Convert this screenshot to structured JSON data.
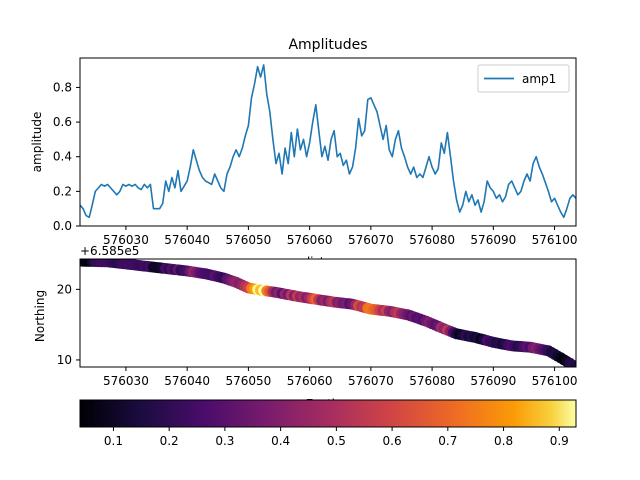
{
  "chart_data": [
    {
      "type": "line",
      "title": "Amplitudes",
      "xlabel": "distance",
      "ylabel": "amplitude",
      "xlim": [
        576022.5,
        576103.5
      ],
      "ylim": [
        0.0,
        0.97
      ],
      "xticks": [
        576030,
        576040,
        576050,
        576060,
        576070,
        576080,
        576090,
        576100
      ],
      "xtick_labels": [
        "576030",
        "576040",
        "576050",
        "576060",
        "576070",
        "576080",
        "576090",
        "576100"
      ],
      "yticks": [
        0.0,
        0.2,
        0.4,
        0.6,
        0.8
      ],
      "ytick_labels": [
        "0.0",
        "0.2",
        "0.4",
        "0.6",
        "0.8"
      ],
      "legend": "top-right",
      "series": [
        {
          "name": "amp1",
          "color": "#1f77b4",
          "points": [
            [
              576022.5,
              0.12
            ],
            [
              576023.0,
              0.1
            ],
            [
              576023.5,
              0.06
            ],
            [
              576024.0,
              0.05
            ],
            [
              576024.5,
              0.12
            ],
            [
              576025.0,
              0.2
            ],
            [
              576025.5,
              0.22
            ],
            [
              576026.0,
              0.24
            ],
            [
              576026.5,
              0.23
            ],
            [
              576027.0,
              0.24
            ],
            [
              576027.5,
              0.22
            ],
            [
              576028.0,
              0.2
            ],
            [
              576028.5,
              0.18
            ],
            [
              576029.0,
              0.2
            ],
            [
              576029.5,
              0.24
            ],
            [
              576030.0,
              0.23
            ],
            [
              576030.5,
              0.24
            ],
            [
              576031.0,
              0.23
            ],
            [
              576031.5,
              0.24
            ],
            [
              576032.0,
              0.22
            ],
            [
              576032.5,
              0.21
            ],
            [
              576033.0,
              0.24
            ],
            [
              576033.5,
              0.22
            ],
            [
              576034.0,
              0.24
            ],
            [
              576034.5,
              0.1
            ],
            [
              576035.0,
              0.1
            ],
            [
              576035.5,
              0.1
            ],
            [
              576036.0,
              0.13
            ],
            [
              576036.5,
              0.26
            ],
            [
              576037.0,
              0.2
            ],
            [
              576037.5,
              0.28
            ],
            [
              576038.0,
              0.22
            ],
            [
              576038.5,
              0.32
            ],
            [
              576039.0,
              0.2
            ],
            [
              576039.5,
              0.23
            ],
            [
              576040.0,
              0.26
            ],
            [
              576040.5,
              0.34
            ],
            [
              576041.0,
              0.44
            ],
            [
              576041.5,
              0.38
            ],
            [
              576042.0,
              0.32
            ],
            [
              576042.5,
              0.28
            ],
            [
              576043.0,
              0.26
            ],
            [
              576043.5,
              0.25
            ],
            [
              576044.0,
              0.24
            ],
            [
              576044.5,
              0.3
            ],
            [
              576045.0,
              0.26
            ],
            [
              576045.5,
              0.22
            ],
            [
              576046.0,
              0.2
            ],
            [
              576046.5,
              0.3
            ],
            [
              576047.0,
              0.34
            ],
            [
              576047.5,
              0.4
            ],
            [
              576048.0,
              0.44
            ],
            [
              576048.5,
              0.4
            ],
            [
              576049.0,
              0.45
            ],
            [
              576049.5,
              0.52
            ],
            [
              576050.0,
              0.58
            ],
            [
              576050.5,
              0.74
            ],
            [
              576051.0,
              0.82
            ],
            [
              576051.5,
              0.92
            ],
            [
              576052.0,
              0.86
            ],
            [
              576052.5,
              0.93
            ],
            [
              576053.0,
              0.76
            ],
            [
              576053.5,
              0.66
            ],
            [
              576054.0,
              0.5
            ],
            [
              576054.5,
              0.36
            ],
            [
              576055.0,
              0.42
            ],
            [
              576055.5,
              0.3
            ],
            [
              576056.0,
              0.45
            ],
            [
              576056.5,
              0.36
            ],
            [
              576057.0,
              0.54
            ],
            [
              576057.5,
              0.4
            ],
            [
              576058.0,
              0.56
            ],
            [
              576058.5,
              0.44
            ],
            [
              576059.0,
              0.5
            ],
            [
              576059.5,
              0.4
            ],
            [
              576060.0,
              0.48
            ],
            [
              576060.5,
              0.6
            ],
            [
              576061.0,
              0.7
            ],
            [
              576061.5,
              0.55
            ],
            [
              576062.0,
              0.4
            ],
            [
              576062.5,
              0.46
            ],
            [
              576063.0,
              0.38
            ],
            [
              576063.5,
              0.5
            ],
            [
              576064.0,
              0.55
            ],
            [
              576064.5,
              0.4
            ],
            [
              576065.0,
              0.42
            ],
            [
              576065.5,
              0.35
            ],
            [
              576066.0,
              0.38
            ],
            [
              576066.5,
              0.3
            ],
            [
              576067.0,
              0.34
            ],
            [
              576067.5,
              0.45
            ],
            [
              576068.0,
              0.62
            ],
            [
              576068.5,
              0.52
            ],
            [
              576069.0,
              0.55
            ],
            [
              576069.5,
              0.73
            ],
            [
              576070.0,
              0.74
            ],
            [
              576070.5,
              0.7
            ],
            [
              576071.0,
              0.66
            ],
            [
              576071.5,
              0.58
            ],
            [
              576072.0,
              0.5
            ],
            [
              576072.5,
              0.58
            ],
            [
              576073.0,
              0.44
            ],
            [
              576073.5,
              0.4
            ],
            [
              576074.0,
              0.5
            ],
            [
              576074.5,
              0.55
            ],
            [
              576075.0,
              0.45
            ],
            [
              576075.5,
              0.4
            ],
            [
              576076.0,
              0.34
            ],
            [
              576076.5,
              0.3
            ],
            [
              576077.0,
              0.34
            ],
            [
              576077.5,
              0.28
            ],
            [
              576078.0,
              0.3
            ],
            [
              576078.5,
              0.28
            ],
            [
              576079.0,
              0.34
            ],
            [
              576079.5,
              0.4
            ],
            [
              576080.0,
              0.34
            ],
            [
              576080.5,
              0.3
            ],
            [
              576081.0,
              0.33
            ],
            [
              576081.5,
              0.48
            ],
            [
              576082.0,
              0.42
            ],
            [
              576082.5,
              0.54
            ],
            [
              576083.0,
              0.4
            ],
            [
              576083.5,
              0.26
            ],
            [
              576084.0,
              0.15
            ],
            [
              576084.5,
              0.08
            ],
            [
              576085.0,
              0.12
            ],
            [
              576085.5,
              0.2
            ],
            [
              576086.0,
              0.14
            ],
            [
              576086.5,
              0.18
            ],
            [
              576087.0,
              0.12
            ],
            [
              576087.5,
              0.15
            ],
            [
              576088.0,
              0.08
            ],
            [
              576088.5,
              0.14
            ],
            [
              576089.0,
              0.26
            ],
            [
              576089.5,
              0.22
            ],
            [
              576090.0,
              0.2
            ],
            [
              576090.5,
              0.16
            ],
            [
              576091.0,
              0.18
            ],
            [
              576091.5,
              0.14
            ],
            [
              576092.0,
              0.17
            ],
            [
              576092.5,
              0.24
            ],
            [
              576093.0,
              0.26
            ],
            [
              576093.5,
              0.22
            ],
            [
              576094.0,
              0.18
            ],
            [
              576094.5,
              0.2
            ],
            [
              576095.0,
              0.26
            ],
            [
              576095.5,
              0.3
            ],
            [
              576096.0,
              0.26
            ],
            [
              576096.5,
              0.36
            ],
            [
              576097.0,
              0.4
            ],
            [
              576097.5,
              0.34
            ],
            [
              576098.0,
              0.3
            ],
            [
              576098.5,
              0.25
            ],
            [
              576099.0,
              0.2
            ],
            [
              576099.5,
              0.14
            ],
            [
              576100.0,
              0.16
            ],
            [
              576100.5,
              0.12
            ],
            [
              576101.0,
              0.08
            ],
            [
              576101.5,
              0.05
            ],
            [
              576102.0,
              0.1
            ],
            [
              576102.5,
              0.16
            ],
            [
              576103.0,
              0.18
            ],
            [
              576103.5,
              0.16
            ]
          ]
        }
      ]
    },
    {
      "type": "scatter",
      "title": "",
      "xlabel": "Easting",
      "ylabel": "Northing",
      "y_offset_label": "+6.585e5",
      "xlim": [
        576022.5,
        576103.5
      ],
      "ylim": [
        9.0,
        24.3
      ],
      "xticks": [
        576030,
        576040,
        576050,
        576060,
        576070,
        576080,
        576090,
        576100
      ],
      "xtick_labels": [
        "576030",
        "576040",
        "576050",
        "576060",
        "576070",
        "576080",
        "576090",
        "576100"
      ],
      "yticks": [
        10,
        20
      ],
      "ytick_labels": [
        "10",
        "20"
      ],
      "colormap": "inferno",
      "path": [
        [
          576022.5,
          24.0
        ],
        [
          576027.0,
          23.9
        ],
        [
          576030.0,
          23.6
        ],
        [
          576033.0,
          23.3
        ],
        [
          576036.0,
          23.0
        ],
        [
          576040.0,
          22.6
        ],
        [
          576043.0,
          22.2
        ],
        [
          576046.0,
          21.6
        ],
        [
          576048.0,
          21.0
        ],
        [
          576050.0,
          20.2
        ],
        [
          576052.0,
          19.9
        ],
        [
          576055.0,
          19.5
        ],
        [
          576058.0,
          19.0
        ],
        [
          576061.0,
          18.6
        ],
        [
          576064.0,
          18.2
        ],
        [
          576067.0,
          17.9
        ],
        [
          576070.0,
          17.2
        ],
        [
          576073.0,
          16.9
        ],
        [
          576076.0,
          16.4
        ],
        [
          576079.0,
          15.5
        ],
        [
          576082.0,
          14.4
        ],
        [
          576084.0,
          13.7
        ],
        [
          576087.0,
          13.2
        ],
        [
          576090.0,
          12.5
        ],
        [
          576093.0,
          12.0
        ],
        [
          576096.0,
          11.8
        ],
        [
          576099.0,
          11.3
        ],
        [
          576101.0,
          10.3
        ],
        [
          576103.5,
          9.0
        ]
      ]
    }
  ],
  "colorbar": {
    "ticks": [
      0.1,
      0.2,
      0.3,
      0.4,
      0.5,
      0.6,
      0.7,
      0.8,
      0.9
    ],
    "tick_labels": [
      "0.1",
      "0.2",
      "0.3",
      "0.4",
      "0.5",
      "0.6",
      "0.7",
      "0.8",
      "0.9"
    ],
    "range": [
      0.04,
      0.93
    ]
  }
}
